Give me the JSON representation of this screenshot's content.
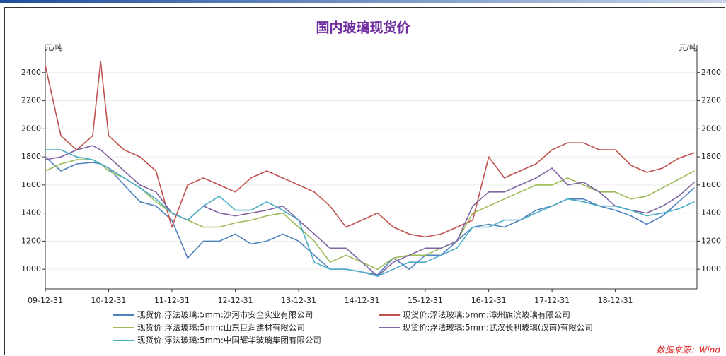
{
  "chart_data": {
    "type": "line",
    "title": "国内玻璃现货价",
    "y_label": "元/吨",
    "y2_label": "元/吨",
    "source": "数据来源：Wind",
    "x": [
      "09-12-31",
      "10-03-31",
      "10-06-30",
      "10-09-30",
      "10-11-15",
      "10-12-31",
      "11-03-31",
      "11-06-30",
      "11-09-30",
      "11-12-31",
      "12-03-31",
      "12-06-30",
      "12-09-30",
      "12-12-31",
      "13-03-31",
      "13-06-30",
      "13-09-30",
      "13-12-31",
      "14-03-31",
      "14-06-30",
      "14-09-30",
      "14-12-31",
      "15-03-31",
      "15-06-30",
      "15-09-30",
      "15-12-31",
      "16-03-31",
      "16-06-30",
      "16-09-30",
      "16-12-31",
      "17-03-31",
      "17-06-30",
      "17-09-30",
      "17-12-31",
      "18-03-31",
      "18-06-30",
      "18-09-30",
      "18-12-31",
      "19-03-31",
      "19-06-30",
      "19-09-30",
      "19-12-31",
      "20-03-31"
    ],
    "xlim": [
      "09-12-31",
      "20-04-15"
    ],
    "xticks": [
      "09-12-31",
      "10-12-31",
      "11-12-31",
      "12-12-31",
      "13-12-31",
      "14-12-31",
      "15-12-31",
      "16-12-31",
      "17-12-31",
      "18-12-31"
    ],
    "ylim": [
      860,
      2600
    ],
    "yticks": [
      1000,
      1200,
      1400,
      1600,
      1800,
      2000,
      2200,
      2400
    ],
    "y2lim": [
      860,
      2600
    ],
    "y2ticks": [
      1000,
      1200,
      1400,
      1600,
      1800,
      2000,
      2200,
      2400
    ],
    "grid": true,
    "series": [
      {
        "name": "现货价:浮法玻璃:5mm:沙河市安全实业有限公司",
        "color": "#4f81bd",
        "values": [
          1800,
          1700,
          1750,
          1760,
          1750,
          1720,
          1600,
          1480,
          1450,
          1350,
          1080,
          1200,
          1200,
          1250,
          1180,
          1200,
          1250,
          1200,
          1100,
          1000,
          1000,
          980,
          960,
          1080,
          1000,
          1100,
          1100,
          1200,
          1300,
          1320,
          1300,
          1350,
          1420,
          1450,
          1500,
          1500,
          1450,
          1420,
          1380,
          1320,
          1380,
          1480,
          1580
        ]
      },
      {
        "name": "现货价:浮法玻璃:5mm:漳州旗滨玻璃有限公司",
        "color": "#c0504d",
        "values": [
          2450,
          1950,
          1850,
          1950,
          2480,
          1950,
          1850,
          1800,
          1700,
          1300,
          1600,
          1650,
          1600,
          1550,
          1650,
          1700,
          1650,
          1600,
          1550,
          1450,
          1300,
          1350,
          1400,
          1300,
          1250,
          1230,
          1250,
          1300,
          1350,
          1800,
          1650,
          1700,
          1750,
          1850,
          1900,
          1900,
          1850,
          1850,
          1740,
          1690,
          1720,
          1790,
          1830
        ]
      },
      {
        "name": "现货价:浮法玻璃:5mm:山东巨润建材有限公司",
        "color": "#9bbb59",
        "values": [
          1700,
          1750,
          1780,
          1780,
          1750,
          1700,
          1650,
          1580,
          1480,
          1400,
          1350,
          1300,
          1300,
          1330,
          1350,
          1380,
          1400,
          1300,
          1200,
          1050,
          1100,
          1050,
          1000,
          1080,
          1100,
          1100,
          1150,
          1200,
          1400,
          1450,
          1500,
          1550,
          1600,
          1600,
          1650,
          1600,
          1550,
          1550,
          1500,
          1520,
          1580,
          1640,
          1700
        ]
      },
      {
        "name": "现货价:浮法玻璃:5mm:武汉长利玻璃(汉南)有限公司",
        "color": "#8064a2",
        "values": [
          1780,
          1800,
          1850,
          1880,
          1850,
          1800,
          1700,
          1600,
          1550,
          1400,
          1350,
          1450,
          1400,
          1380,
          1400,
          1420,
          1450,
          1350,
          1250,
          1150,
          1150,
          1050,
          950,
          1050,
          1100,
          1150,
          1150,
          1200,
          1450,
          1550,
          1550,
          1600,
          1650,
          1720,
          1600,
          1620,
          1550,
          1450,
          1420,
          1400,
          1450,
          1520,
          1620
        ]
      },
      {
        "name": "现货价:浮法玻璃:5mm:中国耀华玻璃集团有限公司",
        "color": "#4bacc6",
        "values": [
          1850,
          1850,
          1800,
          1780,
          1750,
          1720,
          1650,
          1580,
          1500,
          1400,
          1350,
          1450,
          1520,
          1420,
          1420,
          1480,
          1420,
          1350,
          1050,
          1000,
          1000,
          980,
          950,
          1000,
          1050,
          1050,
          1100,
          1150,
          1300,
          1300,
          1350,
          1350,
          1400,
          1450,
          1500,
          1480,
          1450,
          1450,
          1420,
          1380,
          1400,
          1430,
          1480
        ]
      }
    ]
  }
}
